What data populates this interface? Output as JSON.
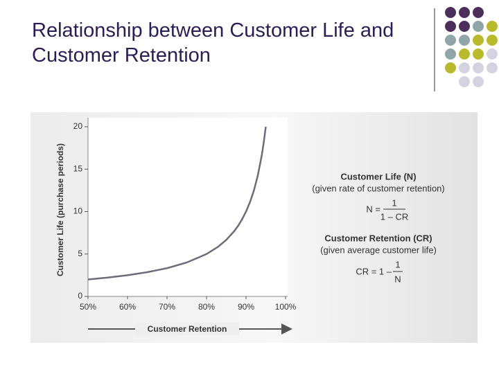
{
  "slide": {
    "title": "Relationship between Customer Life and Customer Retention"
  },
  "chart_data": {
    "type": "line",
    "ylabel": "Customer Life (purchase periods)",
    "xlabel": "Customer Retention",
    "xlim": [
      50,
      100
    ],
    "xticks": [
      {
        "value": 50,
        "label": "50%"
      },
      {
        "value": 60,
        "label": "60%"
      },
      {
        "value": 70,
        "label": "70%"
      },
      {
        "value": 80,
        "label": "80%"
      },
      {
        "value": 90,
        "label": "90%"
      },
      {
        "value": 100,
        "label": "100%"
      }
    ],
    "ylim": [
      0,
      20
    ],
    "yticks": [
      0,
      5,
      10,
      15,
      20
    ],
    "series": [
      {
        "color": "#6f6a78",
        "x": [
          50,
          55,
          60,
          65,
          70,
          75,
          80,
          83,
          85,
          87,
          88,
          89,
          90,
          91,
          92,
          93,
          94,
          94.5,
          95
        ],
        "values": [
          2,
          2.22,
          2.5,
          2.86,
          3.33,
          4,
          5,
          5.88,
          6.67,
          7.69,
          8.33,
          9.09,
          10,
          11.11,
          12.5,
          14.29,
          16.67,
          18.18,
          20
        ]
      }
    ],
    "formula_life": {
      "heading": "Customer Life (N)",
      "subheading": "(given rate of customer retention)",
      "lhs": "N =",
      "numerator": "1",
      "denominator": "1 – CR"
    },
    "formula_retention": {
      "heading": "Customer Retention (CR)",
      "subheading": "(given average customer life)",
      "lhs": "CR = 1 –",
      "numerator": "1",
      "denominator": "N"
    }
  }
}
